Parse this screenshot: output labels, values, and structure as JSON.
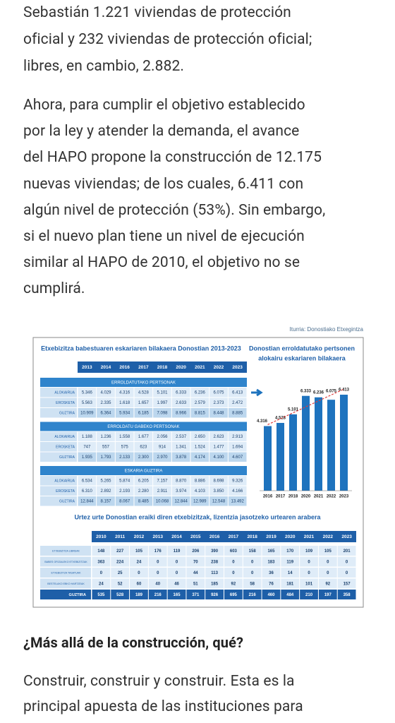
{
  "paragraphs": [
    [
      "Sebastián 1.221 viviendas de protección",
      "oficial y 232 viviendas de protección oficial;",
      "libres, en cambio, 2.882."
    ],
    [
      "Ahora, para cumplir el objetivo establecido",
      "por la ley y atender la demanda, el avance",
      "del HAPO propone la construcción de 12.175",
      "nuevas viviendas; de los cuales, 6.411 con",
      "algún nivel de protección (53%). Sin embargo,",
      "si el nuevo plan tiene un nivel de ejecución",
      "similar al HAPO de 2010, el objetivo no se",
      "cumplirá."
    ]
  ],
  "source": "Iturria: Donostiako Etxegintza",
  "table1": {
    "title": "Etxebizitza babestuaren eskariaren bilakaera Donostian 2013-2023",
    "years": [
      2013,
      2014,
      2016,
      2017,
      2018,
      2020,
      2021,
      2022,
      2023
    ],
    "sections": [
      {
        "title": "ERROLDATUTAKO PERTSONAK",
        "rows": [
          {
            "label": "ALOKAIRUA",
            "values": [
              "5.346",
              "4.029",
              "4.316",
              "4.528",
              "5.101",
              "6.333",
              "6.236",
              "6.075",
              "6.413"
            ]
          },
          {
            "label": "EROSKETA",
            "values": [
              "5.563",
              "2.335",
              "1.618",
              "1.657",
              "1.997",
              "2.633",
              "2.579",
              "2.373",
              "2.472"
            ]
          },
          {
            "label": "GUZTIRA",
            "values": [
              "10.909",
              "6.364",
              "5.934",
              "6.185",
              "7.098",
              "8.966",
              "8.815",
              "8.448",
              "8.885"
            ]
          }
        ]
      },
      {
        "title": "ERROLDATU GABEKO PERTSONAK",
        "rows": [
          {
            "label": "ALOKAIRUA",
            "values": [
              "1.188",
              "1.236",
              "1.558",
              "1.677",
              "2.056",
              "2.537",
              "2.650",
              "2.623",
              "2.913"
            ]
          },
          {
            "label": "EROSKETA",
            "values": [
              "747",
              "557",
              "575",
              "623",
              "914",
              "1.341",
              "1.524",
              "1.477",
              "1.694"
            ]
          },
          {
            "label": "GUZTIRA",
            "values": [
              "1.935",
              "1.793",
              "2.133",
              "2.300",
              "2.970",
              "3.878",
              "4.174",
              "4.100",
              "4.607"
            ]
          }
        ]
      },
      {
        "title": "ESKARIA GUZTIRA",
        "rows": [
          {
            "label": "ALOKAIRUA",
            "values": [
              "6.534",
              "5.265",
              "5.874",
              "6.205",
              "7.157",
              "8.870",
              "8.886",
              "8.698",
              "9.326"
            ]
          },
          {
            "label": "EROSKETA",
            "values": [
              "6.310",
              "2.892",
              "2.193",
              "2.280",
              "2.911",
              "3.974",
              "4.103",
              "3.850",
              "4.166"
            ]
          },
          {
            "label": "GUZTIRA",
            "values": [
              "12.844",
              "8.157",
              "8.067",
              "8.485",
              "10.068",
              "12.844",
              "12.989",
              "12.548",
              "13.492"
            ]
          }
        ]
      }
    ]
  },
  "chart_data": {
    "type": "bar",
    "title_lines": [
      "Donostian erroldatutako pertsonen",
      "alokairu eskariaren bilakaera"
    ],
    "categories": [
      "2016",
      "2017",
      "2018",
      "2020",
      "2021",
      "2022",
      "2023"
    ],
    "values": [
      4316,
      4528,
      5101,
      6333,
      6236,
      6075,
      6413
    ],
    "value_labels": [
      "4.316",
      "4.528",
      "5.101",
      "6.333",
      "6.236",
      "6.075",
      "6.413"
    ],
    "color": "#1e73be"
  },
  "table2": {
    "title": "Urtez urte Donostian eraiki diren etxebizitzak, lizentzia jasotzeko urtearen arabera",
    "years": [
      2010,
      2011,
      2012,
      2013,
      2014,
      2015,
      2016,
      2017,
      2018,
      2019,
      2020,
      2021,
      2022,
      2023
    ],
    "rows": [
      {
        "label": "ETXEBIZITZA LIBREAK",
        "values": [
          148,
          227,
          105,
          176,
          119,
          206,
          390,
          603,
          158,
          165,
          170,
          109,
          105,
          201
        ]
      },
      {
        "label": "BABES OFIZIALEKO ETXEBIZITZAK",
        "values": [
          363,
          224,
          24,
          0,
          0,
          70,
          238,
          0,
          0,
          183,
          119,
          0,
          0,
          0
        ]
      },
      {
        "label": "ETXEBIZITZA TASATUAK",
        "values": [
          0,
          25,
          0,
          0,
          0,
          44,
          113,
          0,
          0,
          36,
          14,
          0,
          0,
          0
        ]
      },
      {
        "label": "BESTELAKO EBKO HARTZEAK",
        "values": [
          24,
          52,
          60,
          40,
          46,
          51,
          185,
          92,
          58,
          76,
          181,
          101,
          92,
          157
        ]
      },
      {
        "label": "GUZTIRA",
        "values": [
          535,
          528,
          189,
          216,
          165,
          371,
          926,
          695,
          216,
          460,
          484,
          210,
          197,
          358
        ]
      }
    ]
  },
  "heading": "¿Más allá de la construcción, qué?",
  "paragraph3": [
    "Construir, construir y construir. Esta es la",
    "principal apuesta de las instituciones para"
  ]
}
